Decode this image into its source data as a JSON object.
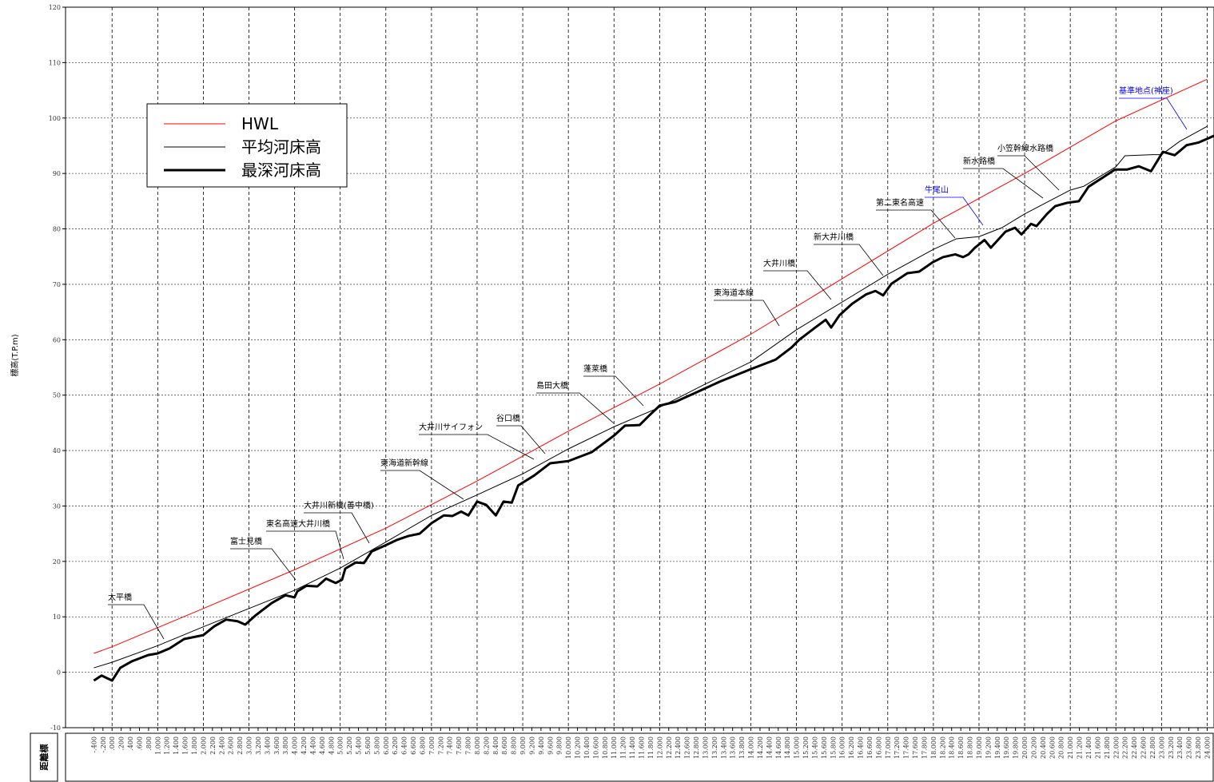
{
  "chart_data": {
    "type": "line",
    "y_label": "標高(T.P.m)",
    "x_label": "距離標",
    "xlim": [
      -1.02,
      24.15
    ],
    "ylim": [
      -10,
      120
    ],
    "yticks": [
      -10,
      0,
      10,
      20,
      30,
      40,
      50,
      60,
      70,
      80,
      90,
      100,
      110,
      120
    ],
    "xticks": [
      {
        "value": -0.4,
        "label": "-.400"
      },
      {
        "value": -0.2,
        "label": "-.200"
      },
      {
        "value": 0,
        "label": ".000"
      },
      {
        "value": 0.2,
        "label": ".200"
      },
      {
        "value": 0.4,
        "label": ".400"
      },
      {
        "value": 0.6,
        "label": ".600"
      },
      {
        "value": 0.8,
        "label": ".800"
      },
      {
        "value": 1,
        "label": "1.000"
      },
      {
        "value": 1.2,
        "label": "1.200"
      },
      {
        "value": 1.4,
        "label": "1.400"
      },
      {
        "value": 1.6,
        "label": "1.600"
      },
      {
        "value": 1.8,
        "label": "1.800"
      },
      {
        "value": 2,
        "label": "2.000"
      },
      {
        "value": 2.2,
        "label": "2.200"
      },
      {
        "value": 2.4,
        "label": "2.400"
      },
      {
        "value": 2.6,
        "label": "2.600"
      },
      {
        "value": 2.8,
        "label": "2.800"
      },
      {
        "value": 3,
        "label": "3.000"
      },
      {
        "value": 3.2,
        "label": "3.200"
      },
      {
        "value": 3.4,
        "label": "3.400"
      },
      {
        "value": 3.6,
        "label": "3.600"
      },
      {
        "value": 3.8,
        "label": "3.800"
      },
      {
        "value": 4,
        "label": "4.000"
      },
      {
        "value": 4.2,
        "label": "4.200"
      },
      {
        "value": 4.4,
        "label": "4.400"
      },
      {
        "value": 4.6,
        "label": "4.600"
      },
      {
        "value": 4.8,
        "label": "4.800"
      },
      {
        "value": 5,
        "label": "5.000"
      },
      {
        "value": 5.2,
        "label": "5.200"
      },
      {
        "value": 5.4,
        "label": "5.400"
      },
      {
        "value": 5.6,
        "label": "5.600"
      },
      {
        "value": 5.8,
        "label": "5.800"
      },
      {
        "value": 6,
        "label": "6.000"
      },
      {
        "value": 6.2,
        "label": "6.200"
      },
      {
        "value": 6.4,
        "label": "6.400"
      },
      {
        "value": 6.6,
        "label": "6.600"
      },
      {
        "value": 6.8,
        "label": "6.800"
      },
      {
        "value": 7,
        "label": "7.000"
      },
      {
        "value": 7.2,
        "label": "7.200"
      },
      {
        "value": 7.4,
        "label": "7.400"
      },
      {
        "value": 7.6,
        "label": "7.600"
      },
      {
        "value": 7.8,
        "label": "7.800"
      },
      {
        "value": 8,
        "label": "8.000"
      },
      {
        "value": 8.2,
        "label": "8.200"
      },
      {
        "value": 8.4,
        "label": "8.400"
      },
      {
        "value": 8.6,
        "label": "8.600"
      },
      {
        "value": 8.8,
        "label": "8.800"
      },
      {
        "value": 9,
        "label": "9.000"
      },
      {
        "value": 9.2,
        "label": "9.200"
      },
      {
        "value": 9.4,
        "label": "9.400"
      },
      {
        "value": 9.6,
        "label": "9.600"
      },
      {
        "value": 9.8,
        "label": "9.800"
      },
      {
        "value": 10,
        "label": "10.000"
      },
      {
        "value": 10.2,
        "label": "10.200"
      },
      {
        "value": 10.4,
        "label": "10.400"
      },
      {
        "value": 10.6,
        "label": "10.600"
      },
      {
        "value": 10.8,
        "label": "10.800"
      },
      {
        "value": 11,
        "label": "11.000"
      },
      {
        "value": 11.2,
        "label": "11.200"
      },
      {
        "value": 11.4,
        "label": "11.400"
      },
      {
        "value": 11.6,
        "label": "11.600"
      },
      {
        "value": 11.8,
        "label": "11.800"
      },
      {
        "value": 12,
        "label": "12.000"
      },
      {
        "value": 12.2,
        "label": "12.200"
      },
      {
        "value": 12.4,
        "label": "12.400"
      },
      {
        "value": 12.6,
        "label": "12.600"
      },
      {
        "value": 12.8,
        "label": "12.800"
      },
      {
        "value": 13,
        "label": "13.000"
      },
      {
        "value": 13.2,
        "label": "13.200"
      },
      {
        "value": 13.4,
        "label": "13.400"
      },
      {
        "value": 13.6,
        "label": "13.600"
      },
      {
        "value": 13.8,
        "label": "13.800"
      },
      {
        "value": 14,
        "label": "14.000"
      },
      {
        "value": 14.2,
        "label": "14.200"
      },
      {
        "value": 14.4,
        "label": "14.400"
      },
      {
        "value": 14.6,
        "label": "14.600"
      },
      {
        "value": 14.8,
        "label": "14.800"
      },
      {
        "value": 15,
        "label": "15.000"
      },
      {
        "value": 15.2,
        "label": "15.200"
      },
      {
        "value": 15.4,
        "label": "15.400"
      },
      {
        "value": 15.6,
        "label": "15.600"
      },
      {
        "value": 15.8,
        "label": "15.800"
      },
      {
        "value": 16,
        "label": "16.000"
      },
      {
        "value": 16.2,
        "label": "16.200"
      },
      {
        "value": 16.4,
        "label": "16.400"
      },
      {
        "value": 16.6,
        "label": "16.600"
      },
      {
        "value": 16.8,
        "label": "16.800"
      },
      {
        "value": 17,
        "label": "17.000"
      },
      {
        "value": 17.2,
        "label": "17.200"
      },
      {
        "value": 17.4,
        "label": "17.400"
      },
      {
        "value": 17.6,
        "label": "17.600"
      },
      {
        "value": 17.8,
        "label": "17.800"
      },
      {
        "value": 18,
        "label": "18.000"
      },
      {
        "value": 18.2,
        "label": "18.200"
      },
      {
        "value": 18.4,
        "label": "18.400"
      },
      {
        "value": 18.6,
        "label": "18.600"
      },
      {
        "value": 18.8,
        "label": "18.800"
      },
      {
        "value": 19,
        "label": "19.000"
      },
      {
        "value": 19.2,
        "label": "19.200"
      },
      {
        "value": 19.4,
        "label": "19.400"
      },
      {
        "value": 19.6,
        "label": "19.600"
      },
      {
        "value": 19.8,
        "label": "19.800"
      },
      {
        "value": 20,
        "label": "20.000"
      },
      {
        "value": 20.2,
        "label": "20.200"
      },
      {
        "value": 20.4,
        "label": "20.400"
      },
      {
        "value": 20.6,
        "label": "20.600"
      },
      {
        "value": 20.8,
        "label": "20.800"
      },
      {
        "value": 21,
        "label": "21.000"
      },
      {
        "value": 21.2,
        "label": "21.200"
      },
      {
        "value": 21.4,
        "label": "21.400"
      },
      {
        "value": 21.6,
        "label": "21.600"
      },
      {
        "value": 21.8,
        "label": "21.800"
      },
      {
        "value": 22,
        "label": "22.000"
      },
      {
        "value": 22.2,
        "label": "22.200"
      },
      {
        "value": 22.4,
        "label": "22.400"
      },
      {
        "value": 22.6,
        "label": "22.600"
      },
      {
        "value": 22.8,
        "label": "22.800"
      },
      {
        "value": 23,
        "label": "23.000"
      },
      {
        "value": 23.2,
        "label": "23.200"
      },
      {
        "value": 23.4,
        "label": "23.400"
      },
      {
        "value": 23.6,
        "label": "23.600"
      },
      {
        "value": 23.8,
        "label": "23.800"
      },
      {
        "value": 24,
        "label": "24.000"
      }
    ],
    "grid": true,
    "legend": "upper-left",
    "series": [
      {
        "name": "HWL",
        "color": "#ff0000",
        "line_width": 1,
        "x": [
          -0.4,
          0,
          2,
          4,
          6,
          8,
          10,
          12,
          14,
          16,
          18,
          20,
          22,
          24
        ],
        "values": [
          3.4,
          4.6,
          11.5,
          18.5,
          26,
          34.5,
          43.5,
          52,
          61,
          71,
          81,
          90,
          99.5,
          107
        ]
      },
      {
        "name": "平均河床高",
        "color": "#000000",
        "line_width": 1,
        "x": [
          -0.4,
          0,
          1,
          2,
          3,
          4,
          5,
          6,
          7,
          8,
          9,
          10,
          11,
          12,
          13,
          14,
          15,
          16,
          17,
          18,
          18.5,
          19,
          19.5,
          20,
          21,
          21.3,
          22,
          22.2,
          22.8,
          23,
          23.4,
          24
        ],
        "values": [
          0.8,
          1.8,
          4.8,
          8.2,
          11.5,
          14.8,
          18.8,
          23.5,
          28.3,
          32,
          35.8,
          40.3,
          44.3,
          47.8,
          52,
          56,
          61.8,
          66.8,
          71.8,
          76.3,
          78.2,
          78.6,
          80.2,
          82.7,
          87,
          87.7,
          91.2,
          93.2,
          93.4,
          93.4,
          95.8,
          98.5
        ]
      },
      {
        "name": "最深河床高",
        "color": "#000000",
        "line_width": 3,
        "x": [
          -0.4,
          -0.23,
          0,
          0.18,
          0.44,
          0.79,
          1,
          1.26,
          1.58,
          2,
          2.24,
          2.5,
          2.75,
          2.92,
          3.15,
          3.5,
          3.8,
          4,
          4.06,
          4.26,
          4.5,
          4.69,
          4.9,
          5.04,
          5.11,
          5.34,
          5.52,
          5.69,
          5.99,
          6.25,
          6.5,
          6.74,
          7,
          7.27,
          7.46,
          7.65,
          7.81,
          8,
          8.2,
          8.41,
          8.58,
          8.76,
          8.9,
          9.25,
          9.6,
          10,
          10.51,
          11,
          11.24,
          11.56,
          11.77,
          12,
          12.35,
          12.78,
          13.31,
          14,
          14.54,
          14.89,
          15.06,
          15.41,
          15.64,
          15.76,
          15.94,
          16.22,
          16.53,
          16.73,
          16.9,
          17.08,
          17.43,
          17.69,
          17.99,
          18.21,
          18.48,
          18.65,
          18.77,
          18.91,
          19.12,
          19.26,
          19.58,
          19.79,
          19.93,
          20.14,
          20.26,
          20.49,
          20.67,
          20.93,
          21.19,
          21.4,
          21.72,
          21.98,
          22.24,
          22.5,
          22.77,
          23.03,
          23.29,
          23.55,
          23.82,
          24.15
        ],
        "values": [
          -1.5,
          -0.6,
          -1.5,
          0.8,
          2,
          3.1,
          3.4,
          4.3,
          6,
          6.7,
          8.3,
          9.5,
          9.2,
          8.6,
          10.3,
          12.5,
          13.9,
          13.5,
          14.6,
          15.6,
          15.5,
          16.9,
          16.1,
          16.7,
          18.7,
          19.8,
          19.7,
          21.8,
          22.9,
          23.9,
          24.6,
          25,
          26.9,
          28.3,
          28.2,
          29,
          28.3,
          30.8,
          30.2,
          28.3,
          30.8,
          30.6,
          33.7,
          35.5,
          37.7,
          38.1,
          39.7,
          42.7,
          44.5,
          44.6,
          46.3,
          48.1,
          48.8,
          50.4,
          52.4,
          54.7,
          56.4,
          58.6,
          60,
          62.2,
          63.6,
          62.2,
          64.4,
          66.5,
          68.2,
          68.8,
          68,
          70.1,
          72,
          72.3,
          74,
          74.9,
          75.4,
          74.9,
          75.4,
          76.6,
          78,
          76.6,
          79.5,
          80.2,
          79,
          80.9,
          80.5,
          82.7,
          84.1,
          84.7,
          85,
          87.6,
          89.3,
          90.7,
          90.7,
          91.3,
          90.4,
          93.9,
          93.3,
          95.1,
          95.6,
          96.8
        ]
      }
    ],
    "annotations": [
      {
        "text": "太平橋",
        "color": "#000000"
      },
      {
        "text": "富士見橋",
        "color": "#000000"
      },
      {
        "text": "東名高速大井川橋",
        "color": "#000000"
      },
      {
        "text": "大井川新橋(善中橋)",
        "color": "#000000"
      },
      {
        "text": "東海道新幹線",
        "color": "#000000"
      },
      {
        "text": "大井川サイフォン",
        "color": "#000000"
      },
      {
        "text": "谷口橋",
        "color": "#000000"
      },
      {
        "text": "島田大橋",
        "color": "#000000"
      },
      {
        "text": "蓬莱橋",
        "color": "#000000"
      },
      {
        "text": "東海道本線",
        "color": "#000000"
      },
      {
        "text": "大井川橋",
        "color": "#000000"
      },
      {
        "text": "新大井川橋",
        "color": "#000000"
      },
      {
        "text": "第二東名高速",
        "color": "#000000"
      },
      {
        "text": "牛尾山",
        "color": "#0000ff"
      },
      {
        "text": "新水路橋",
        "color": "#000000"
      },
      {
        "text": "小笠幹線水路橋",
        "color": "#000000"
      },
      {
        "text": "基準地点(神座)",
        "color": "#0000ff"
      }
    ]
  }
}
